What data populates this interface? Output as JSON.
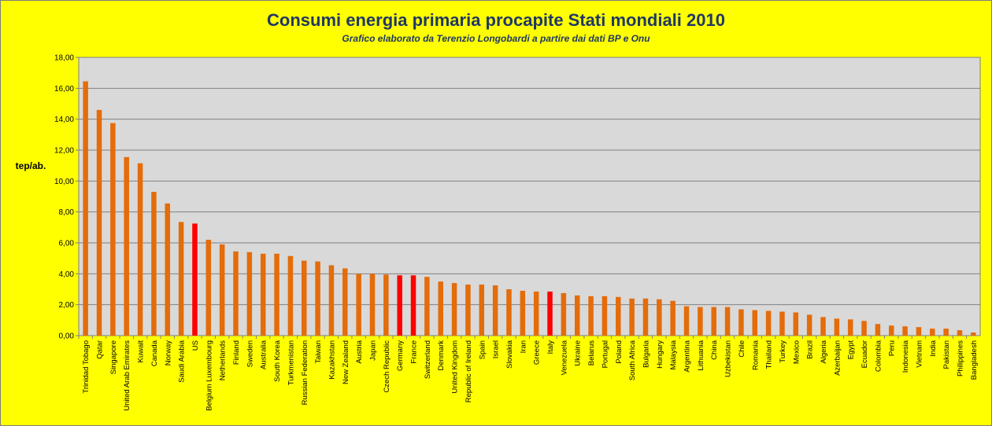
{
  "chart_data": {
    "type": "bar",
    "title": "Consumi energia primaria procapite Stati mondiali 2010",
    "subtitle": "Grafico  elaborato da Terenzio Longobardi  a partire dai dati BP e Onu",
    "ylabel": "tep/ab.",
    "xlabel": "",
    "ylim": [
      0,
      18
    ],
    "yticks": [
      "0,00",
      "2,00",
      "4,00",
      "6,00",
      "8,00",
      "10,00",
      "12,00",
      "14,00",
      "16,00",
      "18,00"
    ],
    "grid": true,
    "legend": "none",
    "colors": {
      "default": "#e46c0a",
      "highlight": "#ff0000",
      "plot_bg": "#d9d9d9",
      "background": "#ffff00",
      "title": "#1f3864"
    },
    "categories": [
      "Trinidad Tobago",
      "Qatar",
      "Singapore",
      "United Arab Emirates",
      "Kuwait",
      "Canada",
      "Norway",
      "Saudi Arabia",
      "US",
      "Belgium Luxembourg",
      "Netherlands",
      "Finland",
      "Sweden",
      "Australia",
      "South Korea",
      "Turkmenistan",
      "Russian Federation",
      "Taiwan",
      "Kazakhstan",
      "New Zealand",
      "Austria",
      "Japan",
      "Czech Republic",
      "Germany",
      "France",
      "Switzerland",
      "Denmark",
      "United Kingdom",
      "Republic of Ireland",
      "Spain",
      "Israel",
      "Slovakia",
      "Iran",
      "Greece",
      "Italy",
      "Venezuela",
      "Ukraine",
      "Belarus",
      "Portugal",
      "Poland",
      "South Africa",
      "Bulgaria",
      "Hungary",
      "Malaysia",
      "Argentina",
      "Lithuania",
      "China",
      "Uzbekistan",
      "Chile",
      "Romania",
      "Thailand",
      "Turkey",
      "Mexico",
      "Brazil",
      "Algeria",
      "Azerbaijan",
      "Egypt",
      "Ecuador",
      "Colombia",
      "Peru",
      "Indonesia",
      "Vietnam",
      "India",
      "Pakistan",
      "Philippines",
      "Bangladesh"
    ],
    "values": [
      16.45,
      14.6,
      13.75,
      11.55,
      11.15,
      9.3,
      8.55,
      7.35,
      7.25,
      6.2,
      5.9,
      5.45,
      5.4,
      5.3,
      5.3,
      5.15,
      4.85,
      4.8,
      4.55,
      4.35,
      4.0,
      4.0,
      3.95,
      3.9,
      3.9,
      3.8,
      3.5,
      3.4,
      3.3,
      3.3,
      3.25,
      3.0,
      2.9,
      2.85,
      2.85,
      2.75,
      2.6,
      2.55,
      2.55,
      2.5,
      2.4,
      2.4,
      2.35,
      2.25,
      1.9,
      1.85,
      1.85,
      1.85,
      1.7,
      1.65,
      1.6,
      1.55,
      1.5,
      1.35,
      1.2,
      1.1,
      1.05,
      0.95,
      0.75,
      0.65,
      0.6,
      0.55,
      0.45,
      0.45,
      0.35,
      0.2
    ],
    "highlighted": [
      "US",
      "Germany",
      "France",
      "Italy"
    ]
  }
}
